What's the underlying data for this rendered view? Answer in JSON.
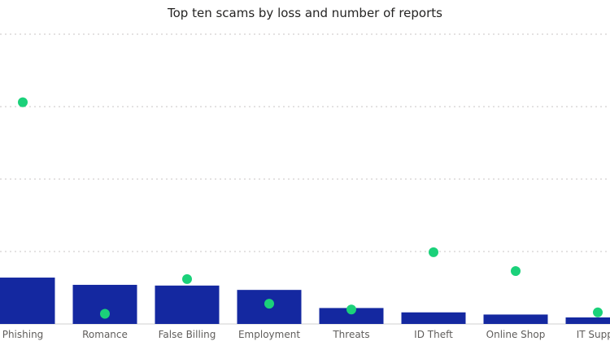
{
  "chart_data": {
    "type": "bar",
    "title": "Top ten scams by loss and number of reports",
    "xlabel": "",
    "ylabel": "",
    "categories": [
      "Phishing",
      "Romance",
      "False Billing",
      "Employment",
      "Threats",
      "ID Theft",
      "Online Shop",
      "IT Support"
    ],
    "visible_labels": [
      "Phishing",
      "Romance",
      "False Billing",
      "Employment",
      "Threats",
      "ID Theft",
      "Online Shop",
      "IT Suppo"
    ],
    "series": [
      {
        "kind": "bar",
        "values": [
          64,
          54,
          53,
          47,
          22,
          16,
          13,
          9
        ]
      },
      {
        "kind": "scatter",
        "values": [
          306,
          14,
          62,
          28,
          20,
          99,
          73,
          16
        ]
      }
    ],
    "ylim": [
      0,
      400
    ],
    "grid": true,
    "legend": "none",
    "colors": {
      "bar": "#1428a0",
      "dot": "#1bd17a",
      "grid": "#c8c6c4",
      "baseline": "#d0d0d0"
    }
  }
}
